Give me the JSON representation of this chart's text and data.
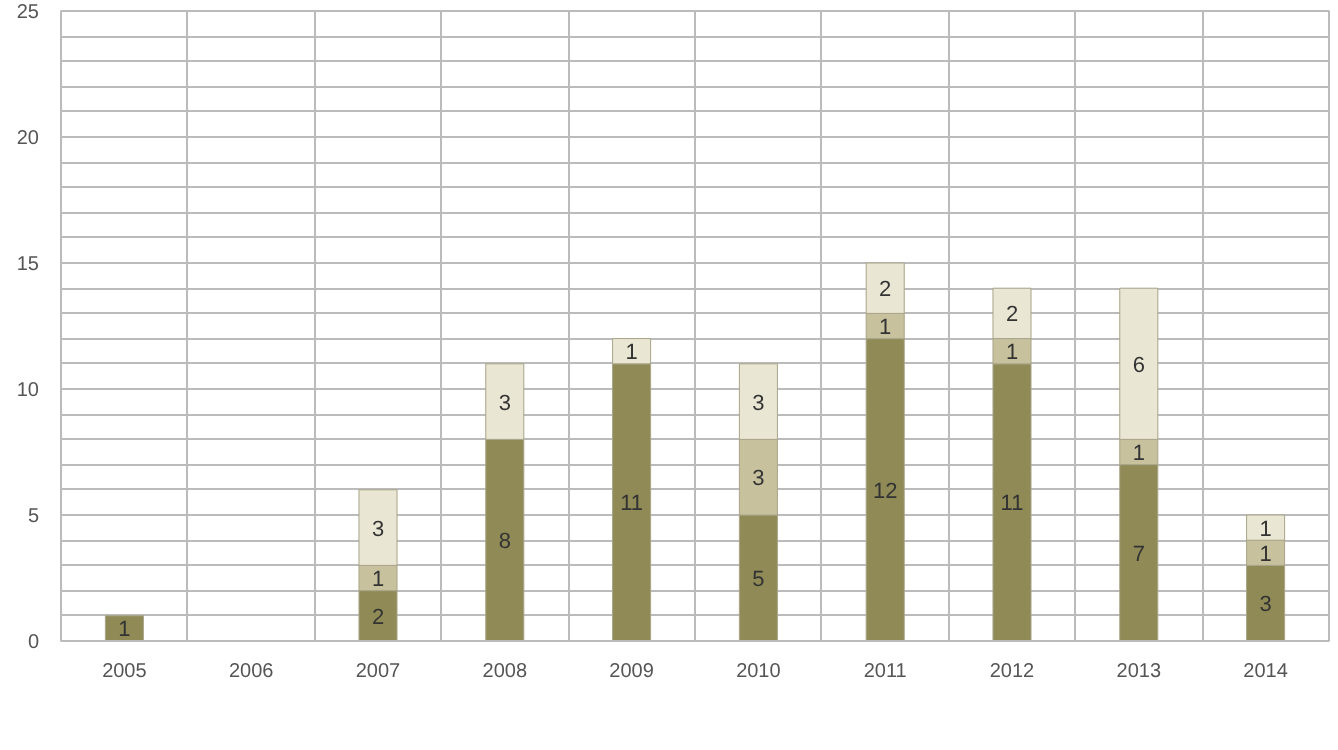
{
  "chart_data": {
    "type": "bar",
    "stacked": true,
    "data_labels": true,
    "grid": true,
    "categories": [
      "2005",
      "2006",
      "2007",
      "2008",
      "2009",
      "2010",
      "2011",
      "2012",
      "2013",
      "2014"
    ],
    "ylim": [
      0,
      25
    ],
    "yticks": [
      0,
      {
        "value": 1,
        "label": null
      },
      {
        "value": 2,
        "label": null
      },
      {
        "value": 3,
        "label": null
      },
      {
        "value": 4,
        "label": null
      },
      5,
      {
        "value": 6,
        "label": null
      },
      {
        "value": 7,
        "label": null
      },
      {
        "value": 8,
        "label": null
      },
      {
        "value": 9,
        "label": null
      },
      10,
      {
        "value": 11,
        "label": null
      },
      {
        "value": 12,
        "label": null
      },
      {
        "value": 13,
        "label": null
      },
      {
        "value": 14,
        "label": null
      },
      15,
      {
        "value": 16,
        "label": null
      },
      {
        "value": 17,
        "label": null
      },
      {
        "value": 18,
        "label": null
      },
      {
        "value": 19,
        "label": null
      },
      20,
      {
        "value": 21,
        "label": null
      },
      {
        "value": 22,
        "label": null
      },
      {
        "value": 23,
        "label": null
      },
      {
        "value": 24,
        "label": null
      },
      25
    ],
    "series": [
      {
        "color": "#8f8a56",
        "values": [
          1,
          null,
          2,
          8,
          11,
          5,
          12,
          11,
          7,
          3
        ]
      },
      {
        "color": "#c7c19e",
        "values": [
          null,
          null,
          1,
          null,
          null,
          3,
          1,
          1,
          1,
          1
        ]
      },
      {
        "color": "#e9e6d3",
        "values": [
          null,
          null,
          3,
          3,
          1,
          3,
          2,
          2,
          6,
          1
        ]
      }
    ]
  }
}
